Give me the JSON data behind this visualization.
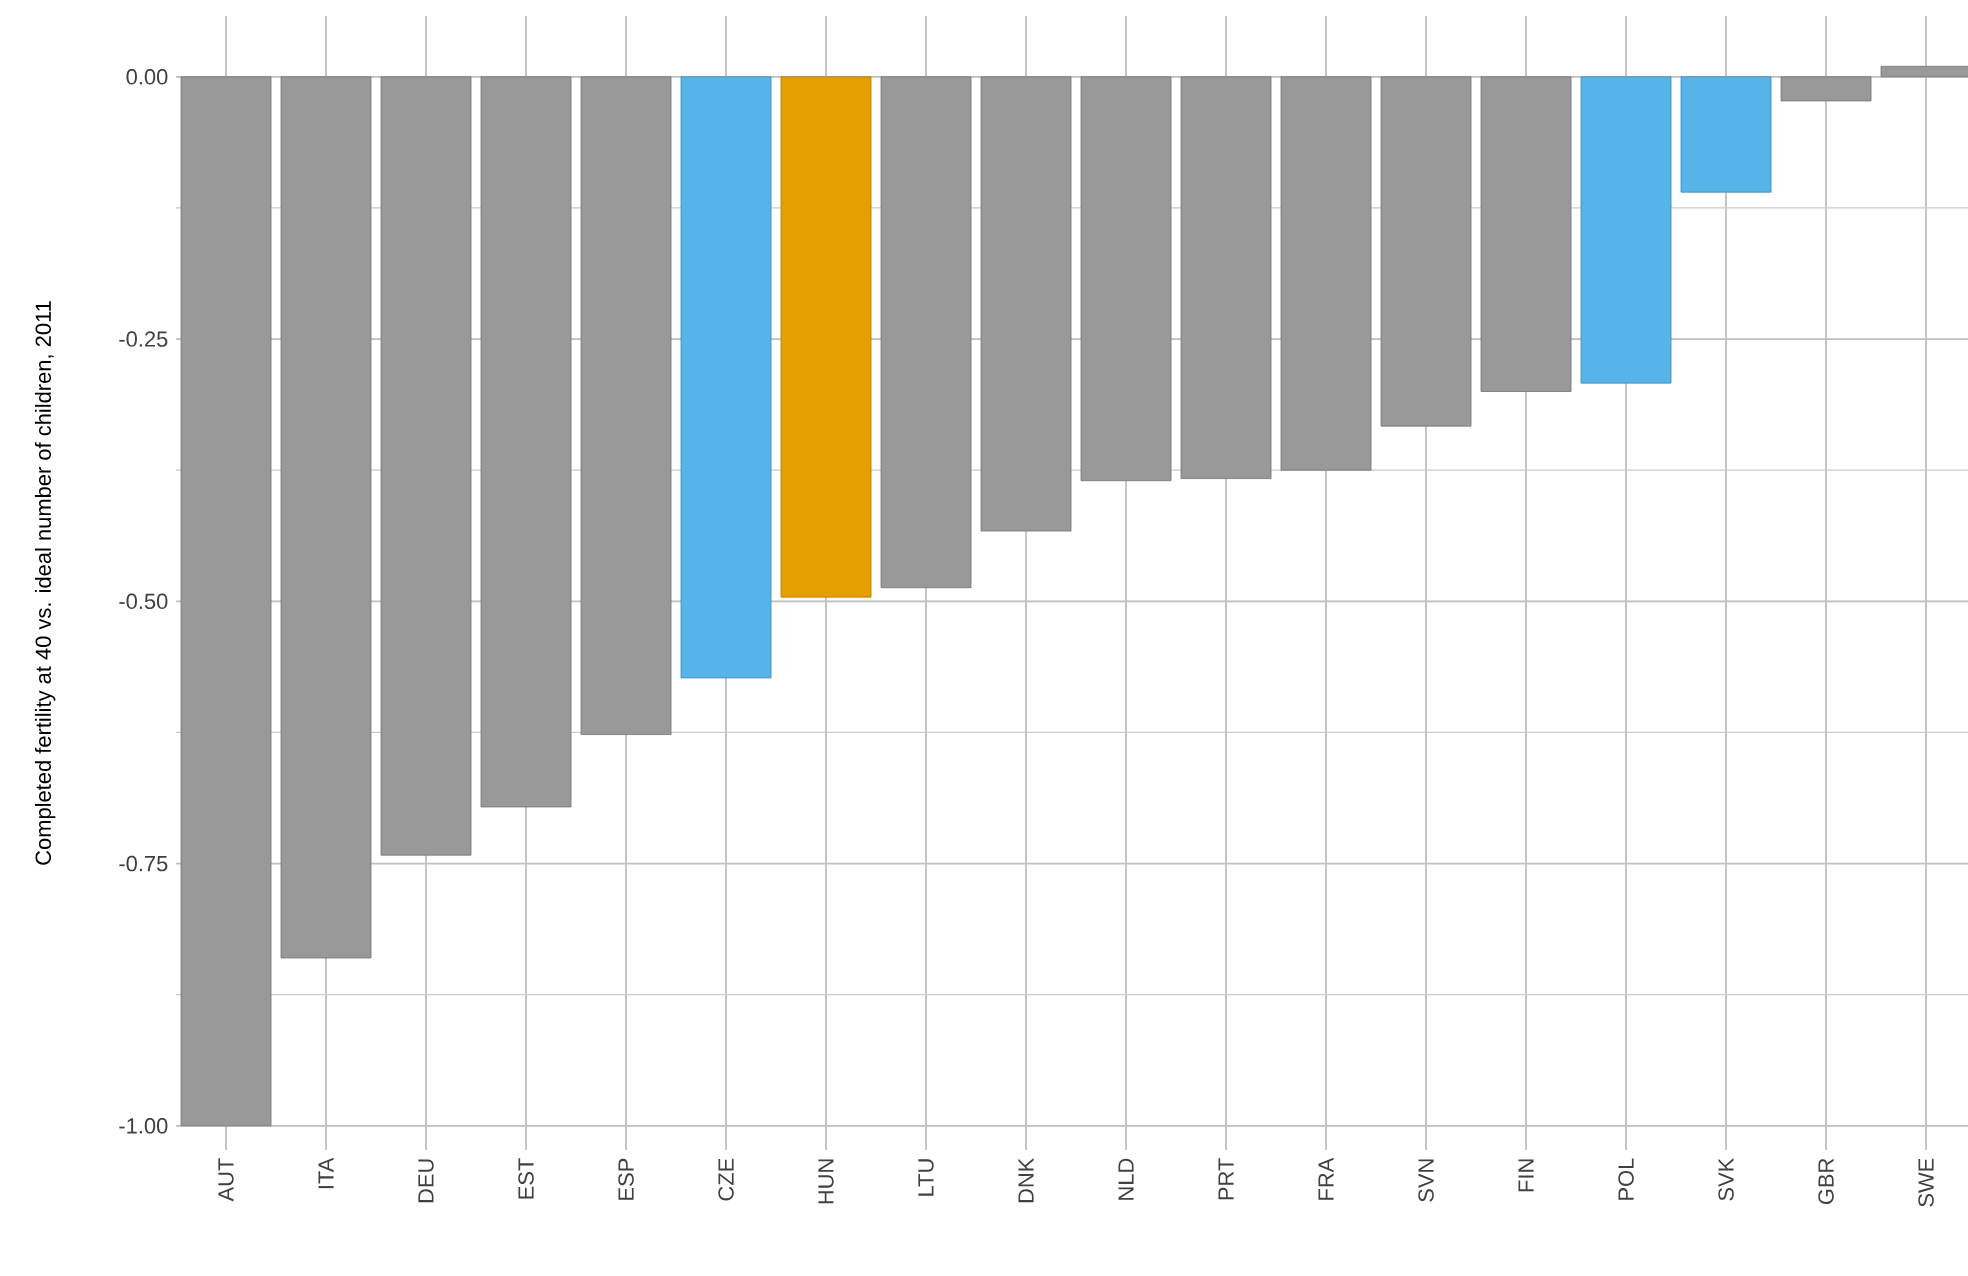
{
  "chart_data": {
    "type": "bar",
    "ylabel": "Completed fertility at 40 vs. ideal number of children, 2011",
    "categories": [
      "AUT",
      "ITA",
      "DEU",
      "EST",
      "ESP",
      "CZE",
      "HUN",
      "LTU",
      "DNK",
      "NLD",
      "PRT",
      "FRA",
      "SVN",
      "FIN",
      "POL",
      "SVK",
      "GBR",
      "SWE"
    ],
    "values": [
      -1.0,
      -0.84,
      -0.742,
      -0.696,
      -0.627,
      -0.573,
      -0.496,
      -0.487,
      -0.433,
      -0.385,
      -0.383,
      -0.375,
      -0.333,
      -0.3,
      -0.292,
      -0.11,
      -0.023,
      0.01
    ],
    "colors": [
      "#999999",
      "#999999",
      "#999999",
      "#999999",
      "#999999",
      "#56b4e9",
      "#e69f00",
      "#999999",
      "#999999",
      "#999999",
      "#999999",
      "#999999",
      "#999999",
      "#999999",
      "#56b4e9",
      "#56b4e9",
      "#999999",
      "#999999"
    ],
    "ylim": [
      -1.023,
      0.058
    ],
    "yticks": [
      {
        "value": -1.0,
        "label": "-1.00"
      },
      {
        "value": -0.75,
        "label": "-0.75"
      },
      {
        "value": -0.5,
        "label": "-0.50"
      },
      {
        "value": -0.25,
        "label": "-0.25"
      },
      {
        "value": 0,
        "label": "0.00"
      }
    ],
    "grid": true
  }
}
